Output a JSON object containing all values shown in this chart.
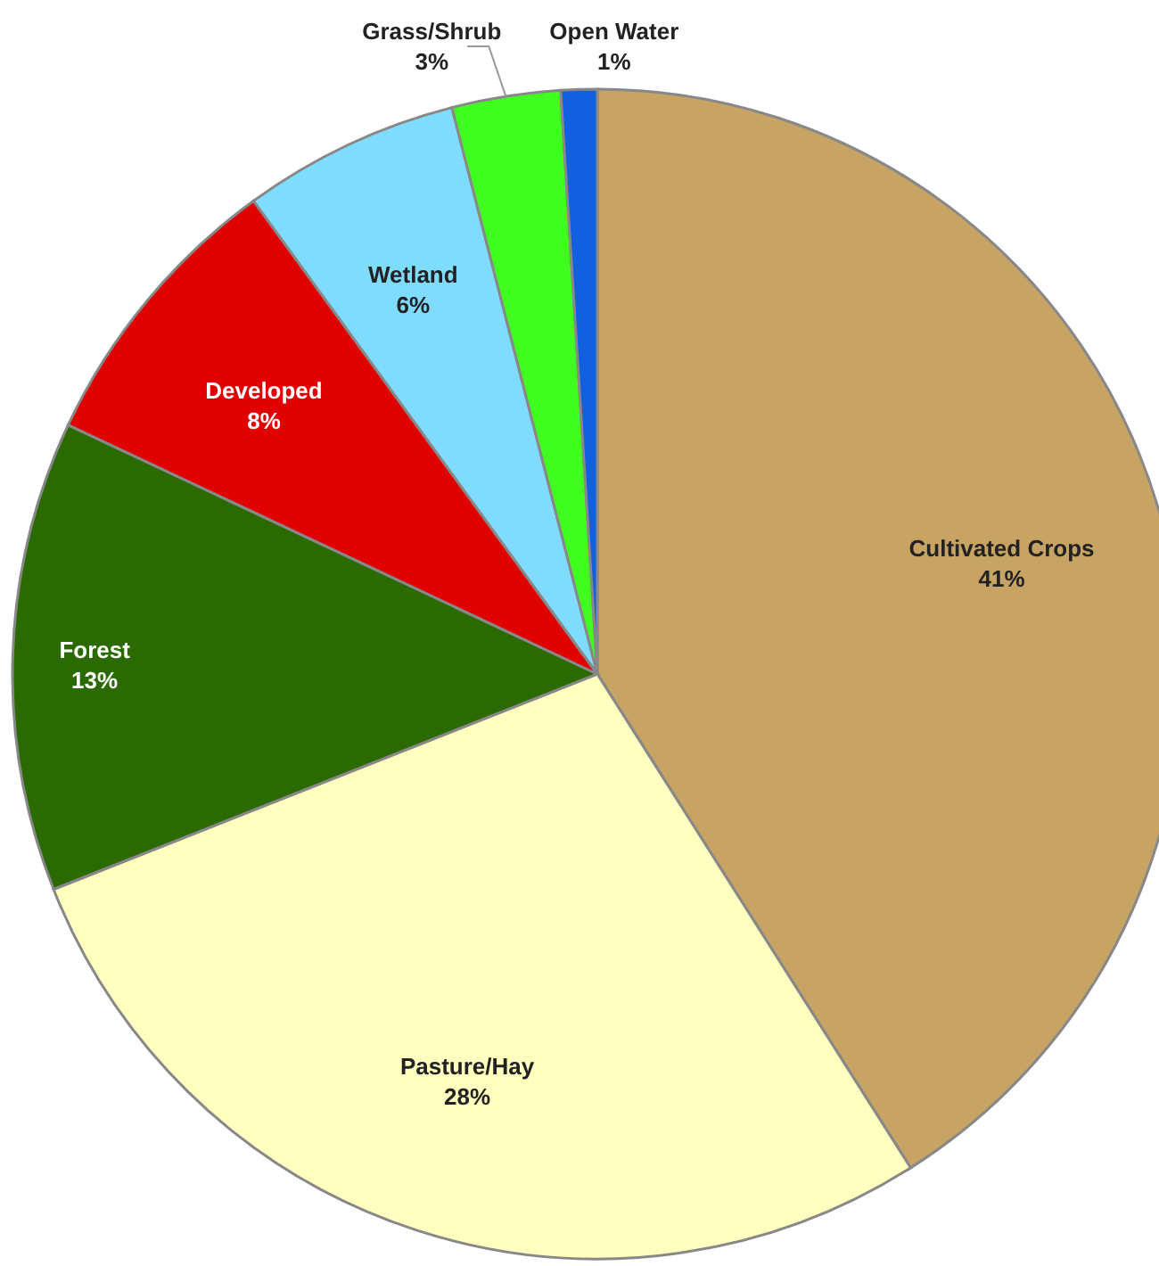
{
  "chart_data": {
    "type": "pie",
    "categories": [
      "Cultivated Crops",
      "Pasture/Hay",
      "Forest",
      "Developed",
      "Wetland",
      "Grass/Shrub",
      "Open Water"
    ],
    "values": [
      41,
      28,
      13,
      8,
      6,
      3,
      1
    ],
    "colors": [
      "#c8a464",
      "#ffffc0",
      "#2a6a00",
      "#e00000",
      "#80dcff",
      "#40ff20",
      "#1060e0"
    ],
    "value_labels": [
      "41%",
      "28%",
      "13%",
      "8%",
      "6%",
      "3%",
      "1%"
    ]
  }
}
